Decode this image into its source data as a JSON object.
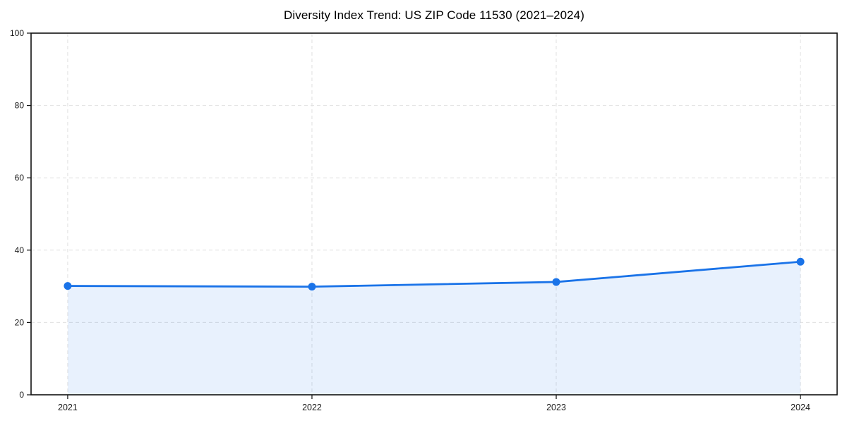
{
  "chart_data": {
    "type": "area",
    "title": "Diversity Index Trend: US ZIP Code 11530 (2021–2024)",
    "x": [
      2021,
      2022,
      2023,
      2024
    ],
    "categories": [
      "2021",
      "2022",
      "2023",
      "2024"
    ],
    "series": [
      {
        "name": "Diversity Index",
        "values": [
          30.1,
          29.9,
          31.2,
          36.8
        ]
      }
    ],
    "xlabel": "",
    "ylabel": "",
    "ylim": [
      0,
      100
    ],
    "yticks": [
      0,
      20,
      40,
      60,
      80,
      100
    ],
    "ytick_labels": [
      "0",
      "20",
      "40",
      "60",
      "80",
      "100"
    ],
    "grid": "dashed-both-axes",
    "legend": "none",
    "marker": "circle",
    "line_color": "#1a73e8",
    "fill_color": "rgba(26,115,232,0.10)",
    "grid_color": "#e0e0e0",
    "spine_color": "#111111",
    "tick_text_color": "#1a1a1a"
  }
}
